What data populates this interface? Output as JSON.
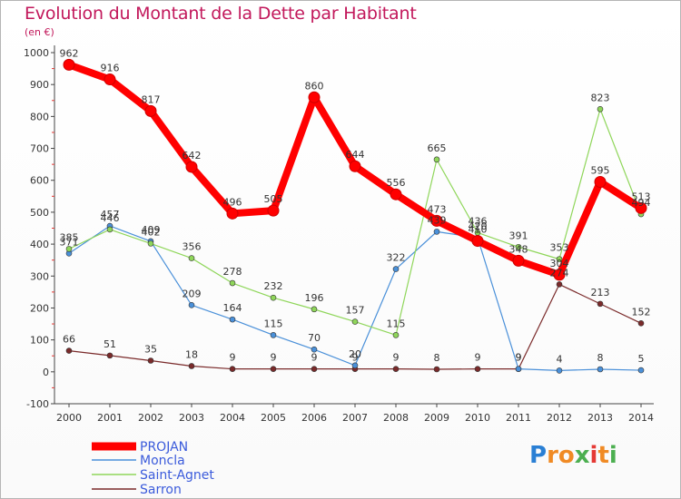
{
  "title": "Evolution du Montant de la Dette par Habitant",
  "subtitle": "(en €)",
  "logo": {
    "text": "Proxiti",
    "letters": [
      "P",
      "r",
      "o",
      "x",
      "i",
      "t",
      "i"
    ],
    "colors": [
      "#2a7fd4",
      "#f08a24",
      "#f08a24",
      "#4caf50",
      "#e53935",
      "#f08a24",
      "#4caf50"
    ]
  },
  "chart_data": {
    "type": "line",
    "title": "Evolution du Montant de la Dette par Habitant",
    "subtitle": "(en €)",
    "x": [
      "2000",
      "2001",
      "2002",
      "2003",
      "2004",
      "2005",
      "2006",
      "2007",
      "2008",
      "2009",
      "2010",
      "2011",
      "2012",
      "2013",
      "2014"
    ],
    "ylim": [
      -100,
      1000
    ],
    "yticks": [
      "-100",
      "0",
      "100",
      "200",
      "300",
      "400",
      "500",
      "600",
      "700",
      "800",
      "900",
      "1000"
    ],
    "grid": false,
    "legend_position": "bottom-left",
    "series": [
      {
        "name": "PROJAN",
        "color": "#ff0000",
        "values": [
          962,
          916,
          817,
          642,
          496,
          505,
          860,
          644,
          556,
          473,
          410,
          348,
          304,
          595,
          513
        ],
        "labels": [
          "962",
          "916",
          "817",
          "642",
          "496",
          "505",
          "860",
          "644",
          "556",
          "473",
          "410",
          "348",
          "304",
          "595",
          "513"
        ]
      },
      {
        "name": "Moncla",
        "color": "#4a90d9",
        "values": [
          371,
          457,
          409,
          209,
          164,
          115,
          70,
          20,
          322,
          439,
          420,
          9,
          4,
          8,
          5
        ],
        "labels": [
          "371",
          "457",
          "409",
          "209",
          "164",
          "115",
          "70",
          "20",
          "322",
          "439",
          "420",
          "9",
          "4",
          "8",
          "5"
        ]
      },
      {
        "name": "Saint-Agnet",
        "color": "#8fd65a",
        "values": [
          385,
          446,
          402,
          356,
          278,
          232,
          196,
          157,
          115,
          665,
          436,
          391,
          353,
          823,
          494
        ],
        "labels": [
          "385",
          "446",
          "402",
          "356",
          "278",
          "232",
          "196",
          "157",
          "115",
          "665",
          "436",
          "391",
          "353",
          "823",
          "494"
        ]
      },
      {
        "name": "Sarron",
        "color": "#7a2a2a",
        "values": [
          66,
          51,
          35,
          18,
          9,
          9,
          9,
          9,
          9,
          8,
          9,
          9,
          274,
          213,
          152
        ],
        "labels": [
          "66",
          "51",
          "35",
          "18",
          "9",
          "9",
          "9",
          "9",
          "9",
          "8",
          "9",
          "9",
          "274",
          "213",
          "152"
        ]
      }
    ]
  }
}
